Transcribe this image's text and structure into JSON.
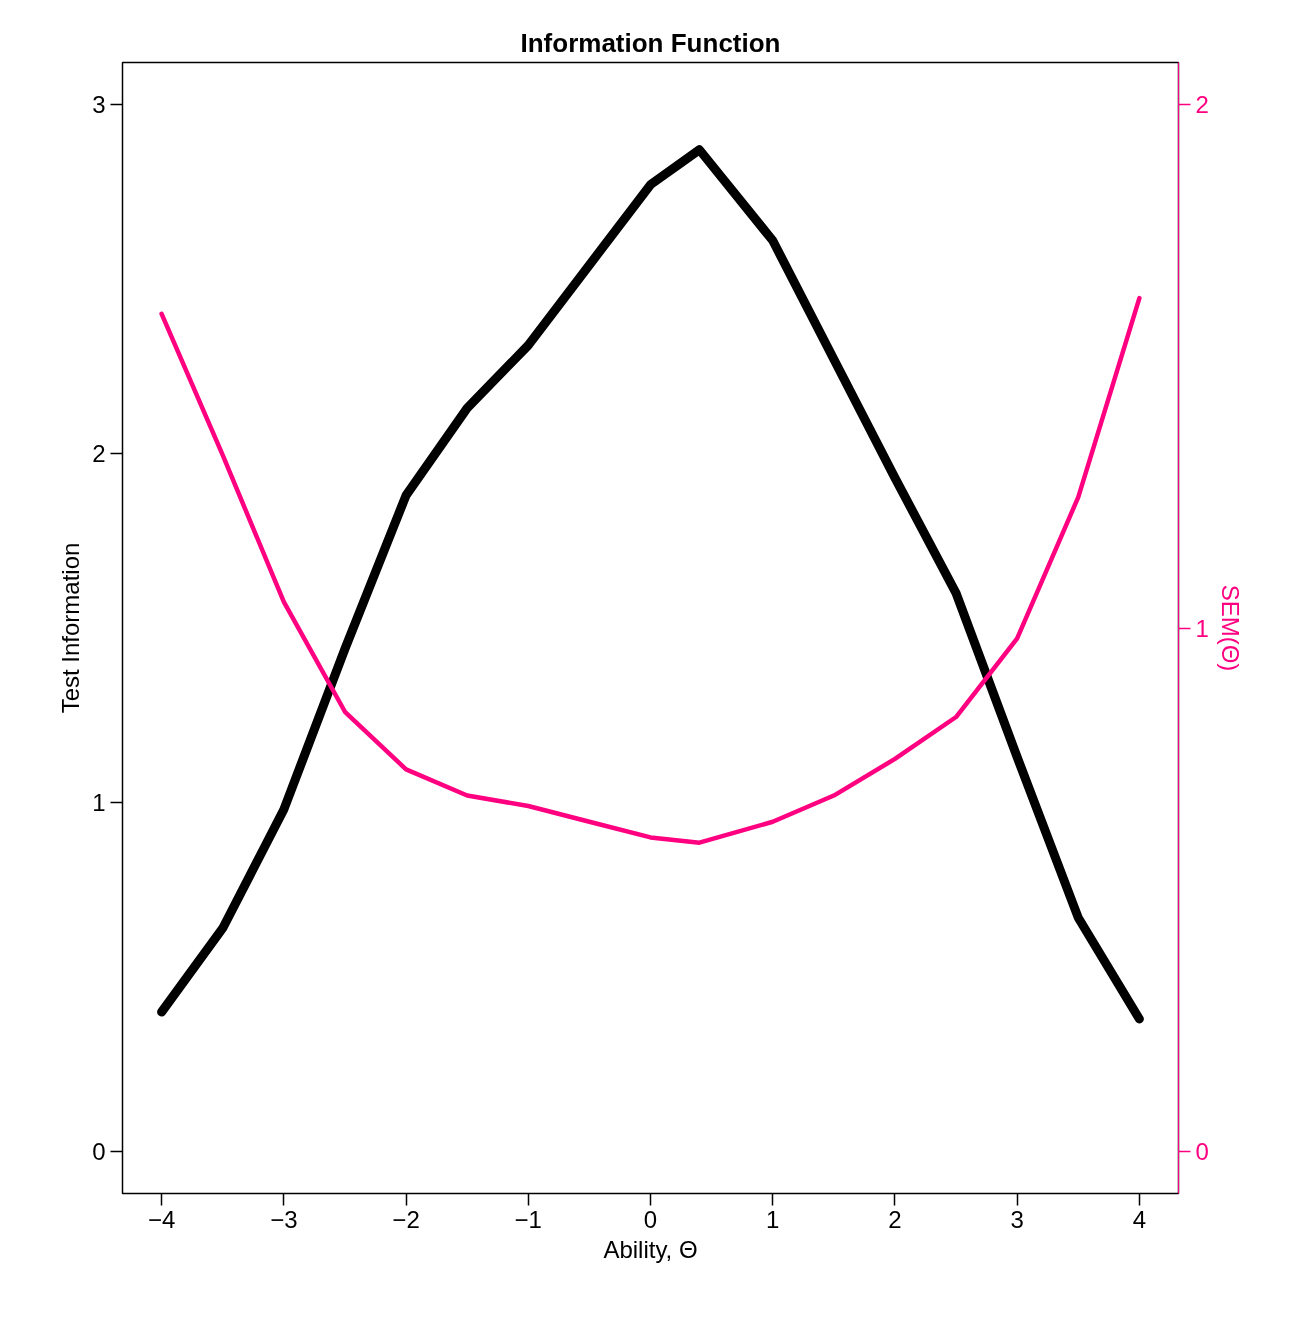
{
  "chart_data": {
    "type": "line",
    "title": "Information Function",
    "xlabel": "Ability, Θ",
    "ylabel": "Test Information",
    "y2label": "SEM(Θ)",
    "x": [
      -4,
      -3.5,
      -3,
      -2.5,
      -2,
      -1.5,
      -1,
      -0.5,
      0,
      0.4,
      1,
      1.5,
      2,
      2.5,
      3,
      3.5,
      4
    ],
    "series": [
      {
        "color": "#000000",
        "values": [
          0.4,
          0.64,
          0.98,
          1.44,
          1.88,
          2.13,
          2.31,
          2.54,
          2.77,
          2.87,
          2.61,
          2.27,
          1.93,
          1.6,
          1.13,
          0.67,
          0.38
        ]
      },
      {
        "color": "#ff0080",
        "axis": "y2",
        "values": [
          1.6,
          1.33,
          1.05,
          0.84,
          0.73,
          0.68,
          0.66,
          0.63,
          0.6,
          0.59,
          0.63,
          0.68,
          0.75,
          0.83,
          0.98,
          1.25,
          1.63
        ]
      }
    ],
    "xlim": [
      -4.32,
      4.32
    ],
    "xticks": [
      -4,
      -3,
      -2,
      -1,
      0,
      1,
      2,
      3,
      4
    ],
    "ylim": [
      -0.12,
      3.12
    ],
    "yticks": [
      0,
      1,
      2,
      3
    ],
    "y2lim": [
      -0.08,
      2.08
    ],
    "y2ticks": [
      0,
      1,
      2
    ],
    "grid": false,
    "marker": "none",
    "line_style": "solid"
  }
}
